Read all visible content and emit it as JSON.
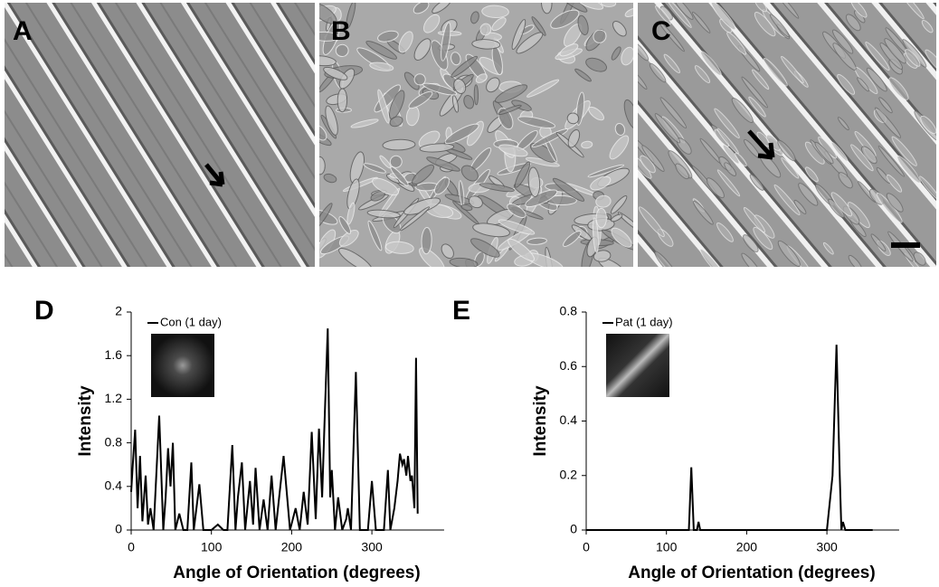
{
  "panels": [
    "A",
    "B",
    "C"
  ],
  "chart_data": [
    {
      "type": "line",
      "panel_label": "D",
      "xlabel": "Angle of Orientation (degrees)",
      "ylabel": "Intensity",
      "x": [
        0,
        2,
        5,
        8,
        11,
        14,
        18,
        21,
        24,
        28,
        35,
        40,
        43,
        46,
        49,
        52,
        55,
        60,
        65,
        70,
        75,
        78,
        85,
        90,
        100,
        108,
        115,
        120,
        126,
        130,
        133,
        138,
        142,
        148,
        152,
        155,
        160,
        165,
        170,
        175,
        180,
        190,
        198,
        205,
        210,
        215,
        220,
        225,
        230,
        234,
        238,
        241,
        245,
        248,
        250,
        254,
        258,
        263,
        268,
        270,
        274,
        280,
        285,
        295,
        300,
        305,
        315,
        320,
        323,
        328,
        332,
        335,
        338,
        340,
        343,
        345,
        348,
        350,
        353,
        355,
        357
      ],
      "series": [
        {
          "name": "Con (1 day)",
          "color": "#000000",
          "values": [
            0.35,
            0.6,
            0.92,
            0.2,
            0.68,
            0.08,
            0.5,
            0.05,
            0.2,
            0,
            1.05,
            0,
            0.3,
            0.75,
            0.4,
            0.8,
            0,
            0.15,
            0,
            0,
            0.62,
            0,
            0.42,
            0,
            0,
            0.05,
            0,
            0,
            0.78,
            0,
            0.3,
            0.62,
            0,
            0.45,
            0.05,
            0.57,
            0,
            0.28,
            0,
            0.5,
            0,
            0.68,
            0,
            0.2,
            0,
            0.35,
            0.05,
            0.9,
            0.1,
            0.93,
            0.3,
            1.0,
            1.85,
            0.3,
            0.55,
            0,
            0.3,
            0,
            0.1,
            0.2,
            0,
            1.45,
            0,
            0,
            0.45,
            0,
            0,
            0.55,
            0,
            0.2,
            0.45,
            0.7,
            0.6,
            0.65,
            0.5,
            0.68,
            0.45,
            0.5,
            0.2,
            1.58,
            0.15
          ]
        }
      ],
      "xlim": [
        0,
        390
      ],
      "ylim": [
        0,
        2
      ],
      "xticks": [
        0,
        100,
        200,
        300
      ],
      "yticks": [
        0,
        0.4,
        0.8,
        1.2,
        1.6,
        2
      ]
    },
    {
      "type": "line",
      "panel_label": "E",
      "xlabel": "Angle of Orientation (degrees)",
      "ylabel": "Intensity",
      "x": [
        0,
        128,
        131,
        134,
        138,
        140,
        142,
        300,
        307,
        312,
        316,
        318,
        320,
        323,
        357
      ],
      "series": [
        {
          "name": "Pat (1 day)",
          "color": "#000000",
          "values": [
            0,
            0,
            0.23,
            0,
            0,
            0.03,
            0,
            0,
            0.2,
            0.68,
            0.2,
            0,
            0.03,
            0,
            0
          ]
        }
      ],
      "xlim": [
        0,
        390
      ],
      "ylim": [
        0,
        0.8
      ],
      "xticks": [
        0,
        100,
        200,
        300
      ],
      "yticks": [
        0,
        0.2,
        0.4,
        0.6,
        0.8
      ]
    }
  ]
}
